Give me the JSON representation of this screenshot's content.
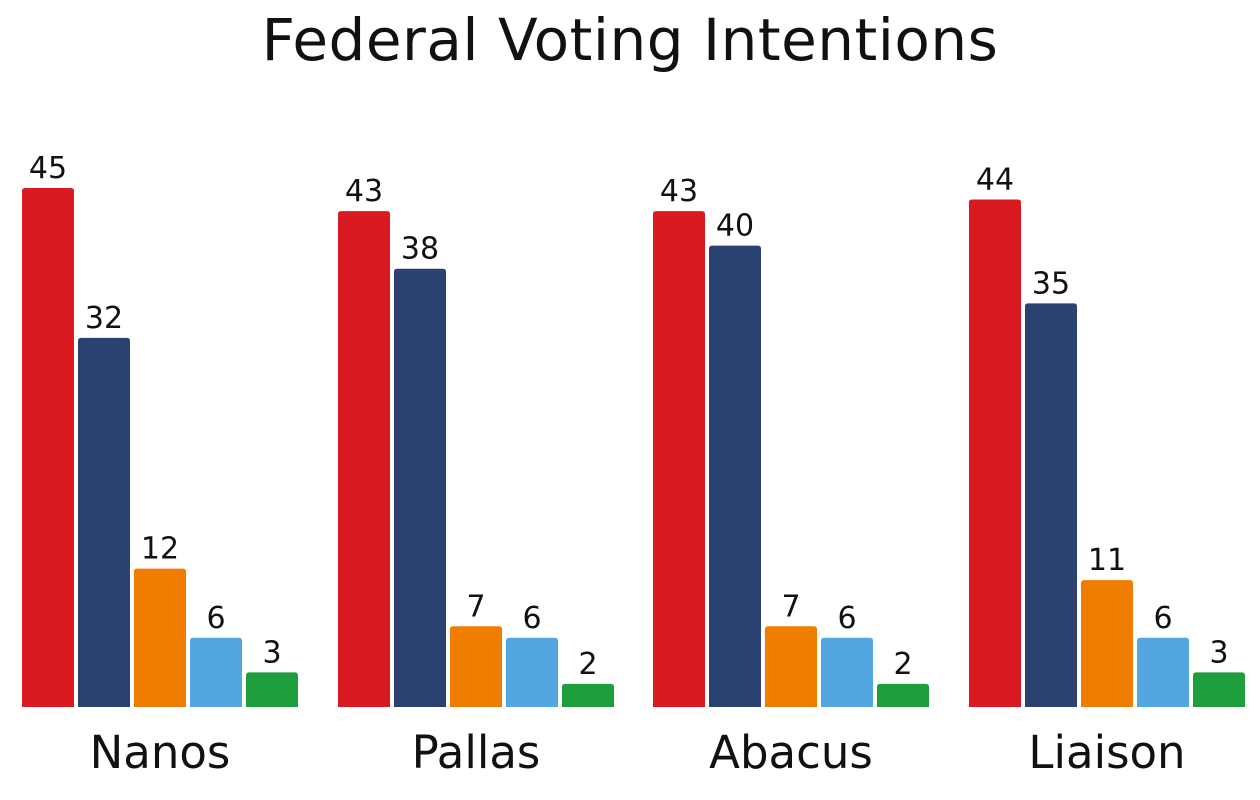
{
  "chart_data": {
    "type": "bar",
    "title": "Federal Voting Intentions",
    "xlabel": "",
    "ylabel": "",
    "ylim": [
      0,
      45
    ],
    "grid": false,
    "legend": "none",
    "categories": [
      "Nanos",
      "Pallas",
      "Abacus",
      "Liaison"
    ],
    "series": [
      {
        "color": "#d91a20",
        "values": [
          45,
          43,
          43,
          44
        ]
      },
      {
        "color": "#2b4170",
        "values": [
          32,
          38,
          40,
          35
        ]
      },
      {
        "color": "#ef7d00",
        "values": [
          12,
          7,
          7,
          11
        ]
      },
      {
        "color": "#53a7e1",
        "values": [
          6,
          6,
          6,
          6
        ]
      },
      {
        "color": "#1f9e3e",
        "values": [
          3,
          2,
          2,
          3
        ]
      }
    ]
  }
}
